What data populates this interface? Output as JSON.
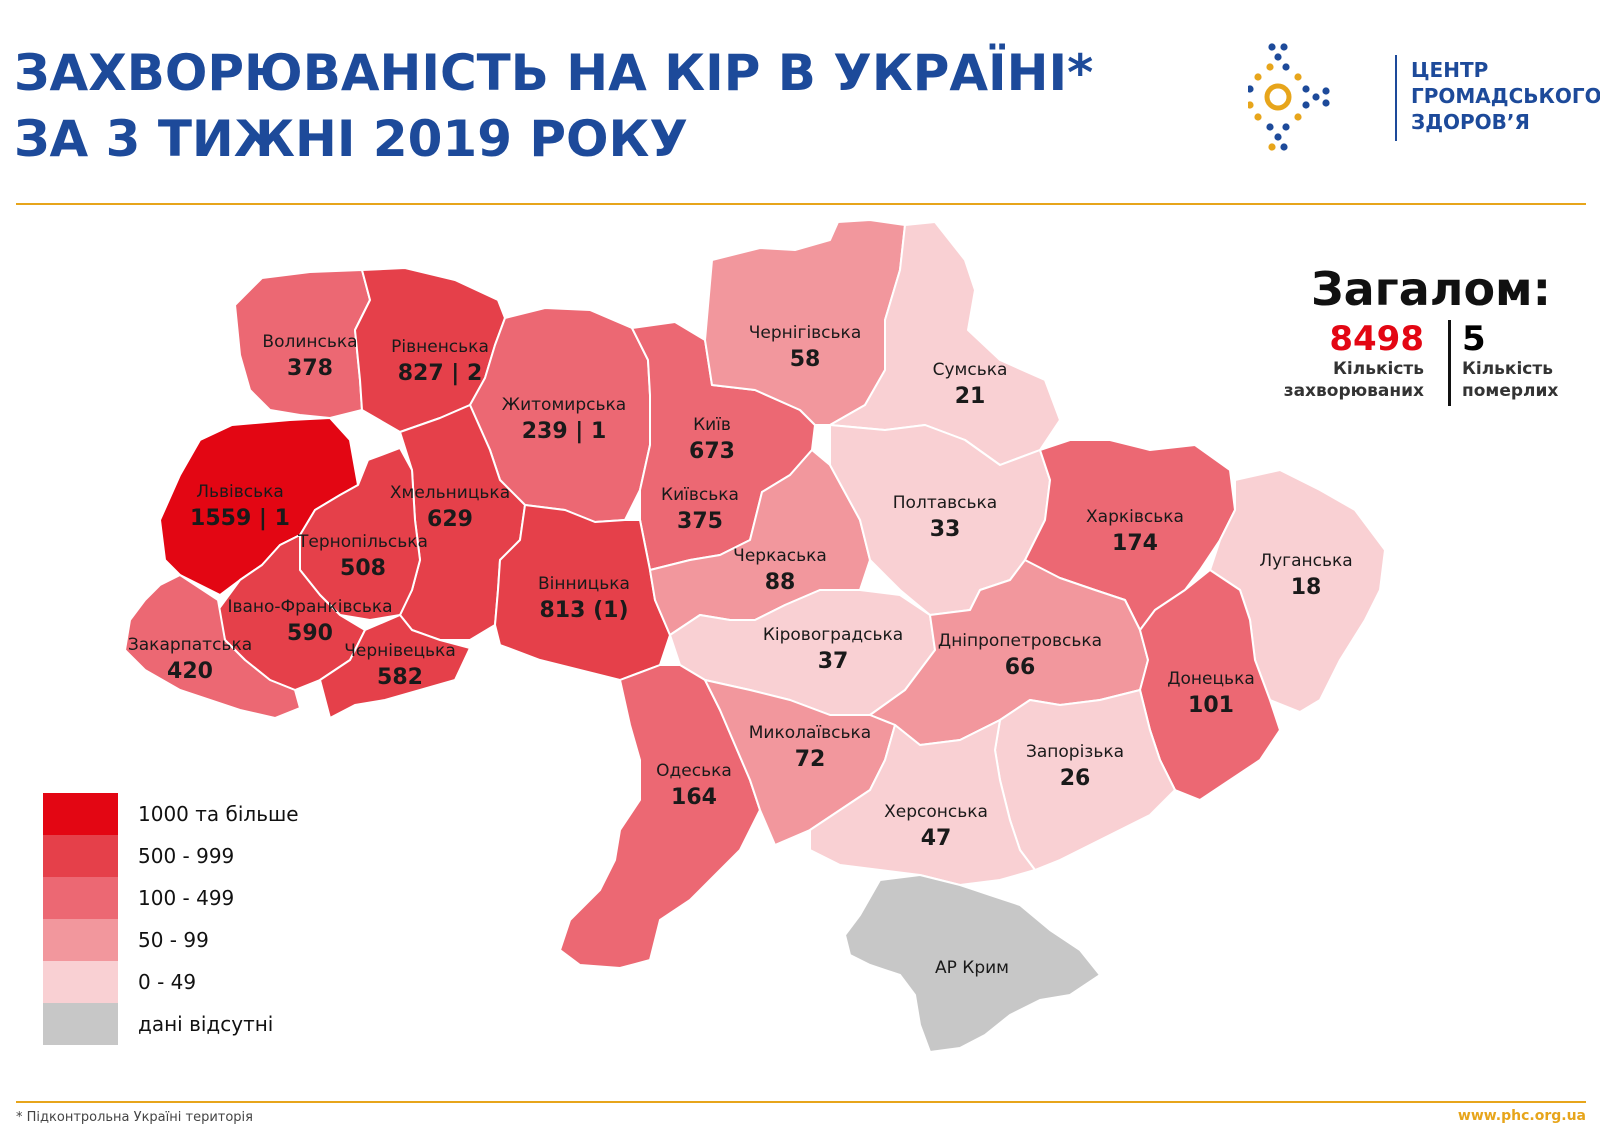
{
  "title": {
    "line1": "ЗАХВОРЮВАНІСТЬ НА КІР В УКРАЇНІ*",
    "line2": "ЗА 3 ТИЖНІ 2019 РОКУ"
  },
  "logo": {
    "line1": "ЦЕНТР",
    "line2": "ГРОМАДСЬКОГО",
    "line3": "ЗДОРОВ’Я",
    "colors": {
      "blue": "#1d4a9a",
      "orange": "#e7a51b"
    }
  },
  "totals": {
    "title": "Загалом:",
    "cases_value": "8498",
    "cases_label_1": "Кількість",
    "cases_label_2": "захворюваних",
    "deaths_value": "5",
    "deaths_label_1": "Кількість",
    "deaths_label_2": "померлих",
    "cases_color": "#e30613"
  },
  "regions": [
    {
      "id": "volynska",
      "name": "Волинська",
      "value": "378",
      "bin": 2
    },
    {
      "id": "rivnenska",
      "name": "Рівненська",
      "value": "827 | 2",
      "bin": 1
    },
    {
      "id": "zhytomyrska",
      "name": "Житомирська",
      "value": "239 | 1",
      "bin": 2
    },
    {
      "id": "kyiv-city",
      "name": "Київ",
      "value": "673",
      "bin": 1
    },
    {
      "id": "kyivska",
      "name": "Київська",
      "value": "375",
      "bin": 2
    },
    {
      "id": "chernihivska",
      "name": "Чернігівська",
      "value": "58",
      "bin": 3
    },
    {
      "id": "sumska",
      "name": "Сумська",
      "value": "21",
      "bin": 4
    },
    {
      "id": "lvivska",
      "name": "Львівська",
      "value": "1559 | 1",
      "bin": 0
    },
    {
      "id": "khmelnytska",
      "name": "Хмельницька",
      "value": "629",
      "bin": 1
    },
    {
      "id": "ternopilska",
      "name": "Тернопільська",
      "value": "508",
      "bin": 1
    },
    {
      "id": "ivano-frankivska",
      "name": "Івано-Франківська",
      "value": "590",
      "bin": 1
    },
    {
      "id": "zakarpatska",
      "name": "Закарпатська",
      "value": "420",
      "bin": 2
    },
    {
      "id": "chernivetska",
      "name": "Чернівецька",
      "value": "582",
      "bin": 1
    },
    {
      "id": "vinnytska",
      "name": "Вінницька",
      "value": "813 (1)",
      "bin": 1
    },
    {
      "id": "cherkaska",
      "name": "Черкаська",
      "value": "88",
      "bin": 3
    },
    {
      "id": "poltavska",
      "name": "Полтавська",
      "value": "33",
      "bin": 4
    },
    {
      "id": "kharkivska",
      "name": "Харківська",
      "value": "174",
      "bin": 2
    },
    {
      "id": "luhanska",
      "name": "Луганська",
      "value": "18",
      "bin": 4
    },
    {
      "id": "kirovohradska",
      "name": "Кіровоградська",
      "value": "37",
      "bin": 4
    },
    {
      "id": "dnipropetrovska",
      "name": "Дніпропетровська",
      "value": "66",
      "bin": 3
    },
    {
      "id": "donetska",
      "name": "Донецька",
      "value": "101",
      "bin": 2
    },
    {
      "id": "odeska",
      "name": "Одеська",
      "value": "164",
      "bin": 2
    },
    {
      "id": "mykolaivska",
      "name": "Миколаївська",
      "value": "72",
      "bin": 3
    },
    {
      "id": "zaporizka",
      "name": "Запорізька",
      "value": "26",
      "bin": 4
    },
    {
      "id": "khersonska",
      "name": "Херсонська",
      "value": "47",
      "bin": 4
    },
    {
      "id": "crimea",
      "name": "АР Крим",
      "value": "",
      "bin": 5
    }
  ],
  "legend": [
    {
      "label": "1000 та більше",
      "color": "#e30613"
    },
    {
      "label": "500 - 999",
      "color": "#e5404a"
    },
    {
      "label": "100 - 499",
      "color": "#ec6873"
    },
    {
      "label": "50 - 99",
      "color": "#f2979d"
    },
    {
      "label": "0 - 49",
      "color": "#f9d0d3"
    },
    {
      "label": "дані відсутні",
      "color": "#c7c7c7"
    }
  ],
  "footnote": "* Підконтрольна Україні територія",
  "website": "www.phc.org.ua"
}
